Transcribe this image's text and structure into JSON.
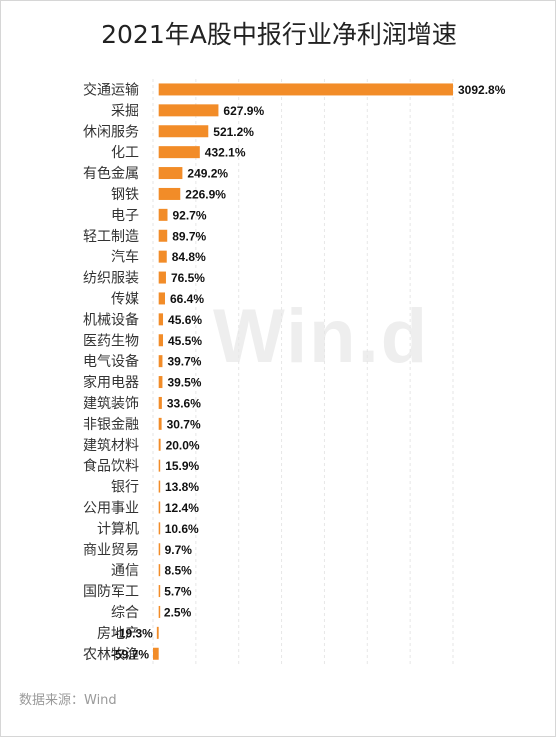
{
  "chart_data": {
    "type": "bar",
    "orientation": "horizontal",
    "title": "2021年A股中报行业净利润增速",
    "categories": [
      "交通运输",
      "采掘",
      "休闲服务",
      "化工",
      "有色金属",
      "钢铁",
      "电子",
      "轻工制造",
      "汽车",
      "纺织服装",
      "传媒",
      "机械设备",
      "医药生物",
      "电气设备",
      "家用电器",
      "建筑装饰",
      "非银金融",
      "建筑材料",
      "食品饮料",
      "银行",
      "公用事业",
      "计算机",
      "商业贸易",
      "通信",
      "国防军工",
      "综合",
      "房地产",
      "农林牧渔"
    ],
    "values": [
      3092.8,
      627.9,
      521.2,
      432.1,
      249.2,
      226.9,
      92.7,
      89.7,
      84.8,
      76.5,
      66.4,
      45.6,
      45.5,
      39.7,
      39.5,
      33.6,
      30.7,
      20.0,
      15.9,
      13.8,
      12.4,
      10.6,
      9.7,
      8.5,
      5.7,
      2.5,
      -19.3,
      -59.7
    ],
    "value_labels": [
      "3092.8%",
      "627.9%",
      "521.2%",
      "432.1%",
      "249.2%",
      "226.9%",
      "92.7%",
      "89.7%",
      "84.8%",
      "76.5%",
      "66.4%",
      "45.6%",
      "45.5%",
      "39.7%",
      "39.5%",
      "33.6%",
      "30.7%",
      "20.0%",
      "15.9%",
      "13.8%",
      "12.4%",
      "10.6%",
      "9.7%",
      "8.5%",
      "5.7%",
      "2.5%",
      "-19.3%",
      "-59.7%"
    ],
    "unit": "%",
    "bar_color": "#f28c28",
    "grid": true,
    "grid_color": "#e6e6e6",
    "xlim": [
      -59.7,
      3092.8
    ]
  },
  "watermark": "Win.d",
  "source": "数据来源：Wind"
}
